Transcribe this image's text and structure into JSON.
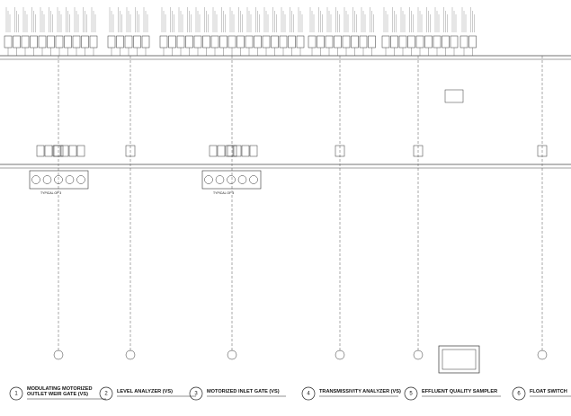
{
  "drawings": [
    {
      "number": "1",
      "title_lines": [
        "MODULATING MOTORIZED",
        "OUTLET WEIR GATE (VS)"
      ]
    },
    {
      "number": "2",
      "title_lines": [
        "LEVEL ANALYZER (VS)"
      ]
    },
    {
      "number": "3",
      "title_lines": [
        "MOTORIZED INLET GATE (VS)"
      ]
    },
    {
      "number": "4",
      "title_lines": [
        "TRANSMISSIVITY ANALYZER (VS)"
      ]
    },
    {
      "number": "5",
      "title_lines": [
        "EFFLUENT QUALITY SAMPLER"
      ]
    },
    {
      "number": "6",
      "title_lines": [
        "FLOAT SWITCH"
      ]
    }
  ],
  "notes": [
    "TYPICAL OF 3",
    "TYPICAL OF 3"
  ]
}
